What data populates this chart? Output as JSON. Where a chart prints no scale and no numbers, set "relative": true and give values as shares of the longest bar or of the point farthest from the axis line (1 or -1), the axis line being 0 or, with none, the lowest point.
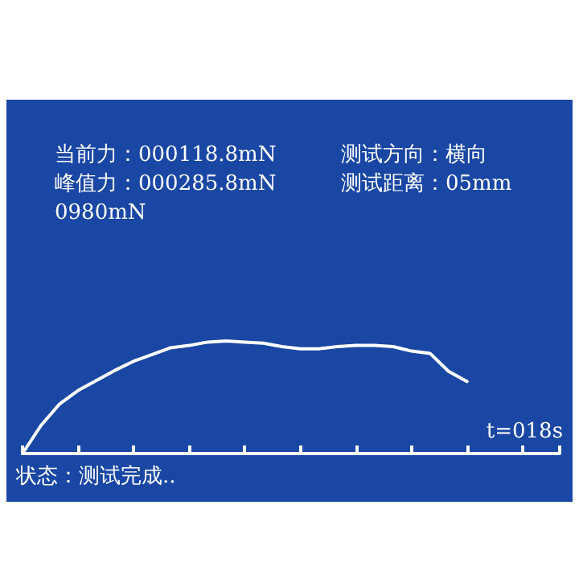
{
  "chart_data": {
    "type": "line",
    "relative": true,
    "color": "#ffffff",
    "annotations": [
      "当前力：000118.8mN",
      "测试方向：横向",
      "峰值力：000285.8mN",
      "测试距离：05mm",
      "0980mN",
      "t=018s",
      "状态：测试完成.."
    ],
    "categories": [
      null,
      null,
      null,
      null,
      null,
      null,
      null,
      null,
      null,
      null,
      null,
      null,
      null,
      null,
      null,
      null,
      null,
      null,
      null,
      null,
      null,
      null,
      null,
      null,
      null,
      null,
      null,
      null,
      null,
      null
    ],
    "values": [
      0,
      0.25,
      0.44,
      0.56,
      0.65,
      0.74,
      0.82,
      0.88,
      0.94,
      0.96,
      0.99,
      1.0,
      0.99,
      0.98,
      0.95,
      0.93,
      0.93,
      0.95,
      0.96,
      0.96,
      0.95,
      0.91,
      0.89,
      0.73,
      0.64,
      null,
      null,
      null,
      null,
      null
    ]
  }
}
